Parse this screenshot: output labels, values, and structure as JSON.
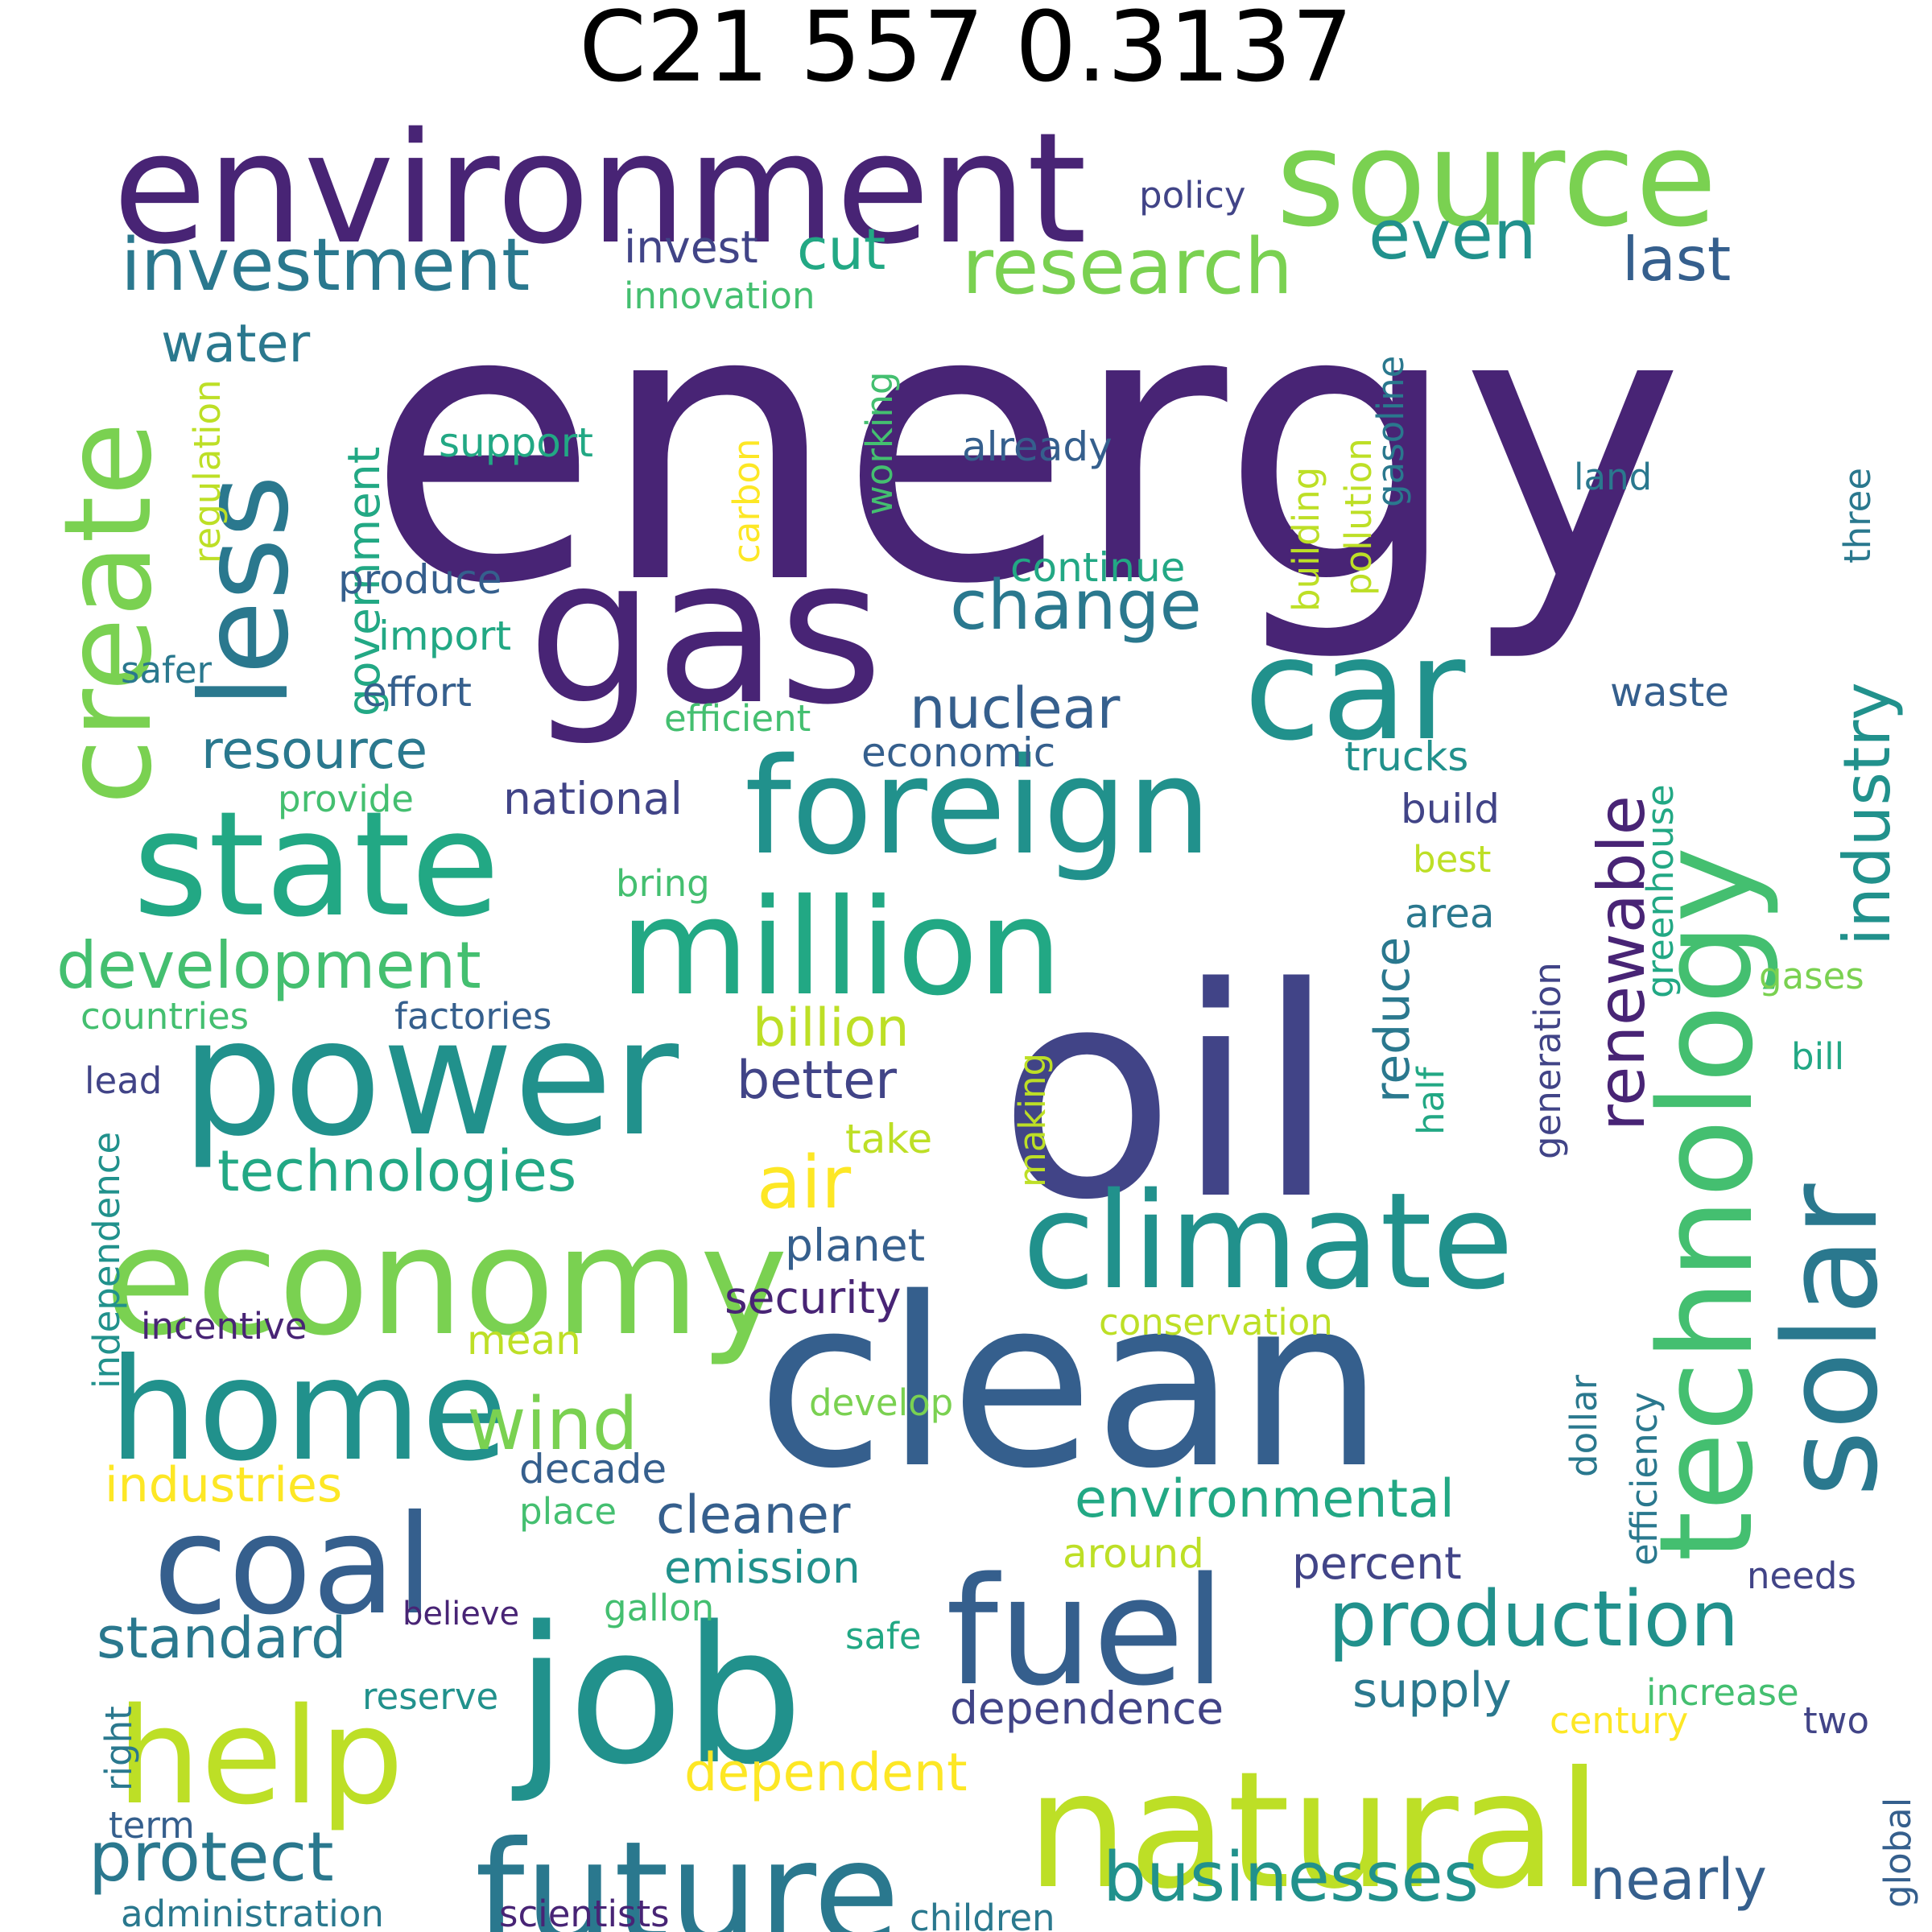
{
  "title": "C21 557 0.3137",
  "palette": {
    "v1": "#482475",
    "v2": "#414487",
    "v3": "#355f8d",
    "v4": "#2a788e",
    "v5": "#21918c",
    "v6": "#22a884",
    "v7": "#44bf70",
    "v8": "#7ad151",
    "v9": "#bddf26",
    "v10": "#fde725"
  },
  "words": [
    {
      "text": "energy",
      "color": "v1"
    },
    {
      "text": "environment",
      "color": "v1"
    },
    {
      "text": "source",
      "color": "v8"
    },
    {
      "text": "gas",
      "color": "v1"
    },
    {
      "text": "oil",
      "color": "v2"
    },
    {
      "text": "clean",
      "color": "v3"
    },
    {
      "text": "car",
      "color": "v5"
    },
    {
      "text": "foreign",
      "color": "v5"
    },
    {
      "text": "state",
      "color": "v6"
    },
    {
      "text": "million",
      "color": "v6"
    },
    {
      "text": "power",
      "color": "v5"
    },
    {
      "text": "economy",
      "color": "v8"
    },
    {
      "text": "climate",
      "color": "v5"
    },
    {
      "text": "technology",
      "color": "v7"
    },
    {
      "text": "solar",
      "color": "v4"
    },
    {
      "text": "home",
      "color": "v5"
    },
    {
      "text": "coal",
      "color": "v3"
    },
    {
      "text": "job",
      "color": "v5"
    },
    {
      "text": "fuel",
      "color": "v3"
    },
    {
      "text": "help",
      "color": "v9"
    },
    {
      "text": "natural",
      "color": "v9"
    },
    {
      "text": "future",
      "color": "v4"
    },
    {
      "text": "less",
      "color": "v4"
    },
    {
      "text": "create",
      "color": "v8"
    },
    {
      "text": "investment",
      "color": "v4"
    },
    {
      "text": "research",
      "color": "v8"
    },
    {
      "text": "even",
      "color": "v5"
    },
    {
      "text": "last",
      "color": "v3"
    },
    {
      "text": "invest",
      "color": "v2"
    },
    {
      "text": "cut",
      "color": "v6"
    },
    {
      "text": "innovation",
      "color": "v7"
    },
    {
      "text": "policy",
      "color": "v2"
    },
    {
      "text": "water",
      "color": "v4"
    },
    {
      "text": "government",
      "color": "v6"
    },
    {
      "text": "regulation",
      "color": "v9"
    },
    {
      "text": "support",
      "color": "v6"
    },
    {
      "text": "carbon",
      "color": "v10"
    },
    {
      "text": "working",
      "color": "v7"
    },
    {
      "text": "already",
      "color": "v3"
    },
    {
      "text": "building",
      "color": "v9"
    },
    {
      "text": "pollution",
      "color": "v9"
    },
    {
      "text": "gasoline",
      "color": "v4"
    },
    {
      "text": "land",
      "color": "v4"
    },
    {
      "text": "three",
      "color": "v4"
    },
    {
      "text": "produce",
      "color": "v3"
    },
    {
      "text": "change",
      "color": "v4"
    },
    {
      "text": "continue",
      "color": "v6"
    },
    {
      "text": "import",
      "color": "v6"
    },
    {
      "text": "safer",
      "color": "v4"
    },
    {
      "text": "effort",
      "color": "v3"
    },
    {
      "text": "efficient",
      "color": "v7"
    },
    {
      "text": "nuclear",
      "color": "v3"
    },
    {
      "text": "industry",
      "color": "v5"
    },
    {
      "text": "resource",
      "color": "v4"
    },
    {
      "text": "economic",
      "color": "v3"
    },
    {
      "text": "renewable",
      "color": "v1"
    },
    {
      "text": "waste",
      "color": "v3"
    },
    {
      "text": "trucks",
      "color": "v5"
    },
    {
      "text": "provide",
      "color": "v7"
    },
    {
      "text": "national",
      "color": "v2"
    },
    {
      "text": "build",
      "color": "v2"
    },
    {
      "text": "greenhouse",
      "color": "v6"
    },
    {
      "text": "best",
      "color": "v9"
    },
    {
      "text": "bring",
      "color": "v7"
    },
    {
      "text": "development",
      "color": "v7"
    },
    {
      "text": "area",
      "color": "v4"
    },
    {
      "text": "reduce",
      "color": "v4"
    },
    {
      "text": "gases",
      "color": "v8"
    },
    {
      "text": "billion",
      "color": "v9"
    },
    {
      "text": "countries",
      "color": "v7"
    },
    {
      "text": "factories",
      "color": "v3"
    },
    {
      "text": "generation",
      "color": "v2"
    },
    {
      "text": "bill",
      "color": "v6"
    },
    {
      "text": "half",
      "color": "v6"
    },
    {
      "text": "lead",
      "color": "v2"
    },
    {
      "text": "better",
      "color": "v2"
    },
    {
      "text": "making",
      "color": "v9"
    },
    {
      "text": "take",
      "color": "v9"
    },
    {
      "text": "air",
      "color": "v10"
    },
    {
      "text": "technologies",
      "color": "v6"
    },
    {
      "text": "independence",
      "color": "v5"
    },
    {
      "text": "planet",
      "color": "v3"
    },
    {
      "text": "security",
      "color": "v1"
    },
    {
      "text": "conservation",
      "color": "v9"
    },
    {
      "text": "incentive",
      "color": "v1"
    },
    {
      "text": "mean",
      "color": "v9"
    },
    {
      "text": "dollar",
      "color": "v4"
    },
    {
      "text": "efficiency",
      "color": "v4"
    },
    {
      "text": "develop",
      "color": "v8"
    },
    {
      "text": "wind",
      "color": "v8"
    },
    {
      "text": "industries",
      "color": "v10"
    },
    {
      "text": "decade",
      "color": "v3"
    },
    {
      "text": "place",
      "color": "v7"
    },
    {
      "text": "cleaner",
      "color": "v3"
    },
    {
      "text": "environmental",
      "color": "v6"
    },
    {
      "text": "around",
      "color": "v9"
    },
    {
      "text": "emission",
      "color": "v5"
    },
    {
      "text": "percent",
      "color": "v2"
    },
    {
      "text": "needs",
      "color": "v2"
    },
    {
      "text": "believe",
      "color": "v1"
    },
    {
      "text": "gallon",
      "color": "v7"
    },
    {
      "text": "safe",
      "color": "v6"
    },
    {
      "text": "standard",
      "color": "v4"
    },
    {
      "text": "production",
      "color": "v5"
    },
    {
      "text": "reserve",
      "color": "v5"
    },
    {
      "text": "supply",
      "color": "v4"
    },
    {
      "text": "increase",
      "color": "v7"
    },
    {
      "text": "dependence",
      "color": "v2"
    },
    {
      "text": "century",
      "color": "v10"
    },
    {
      "text": "two",
      "color": "v2"
    },
    {
      "text": "right",
      "color": "v4"
    },
    {
      "text": "dependent",
      "color": "v10"
    },
    {
      "text": "global",
      "color": "v3"
    },
    {
      "text": "term",
      "color": "v3"
    },
    {
      "text": "protect",
      "color": "v4"
    },
    {
      "text": "businesses",
      "color": "v5"
    },
    {
      "text": "nearly",
      "color": "v3"
    },
    {
      "text": "administration",
      "color": "v4"
    },
    {
      "text": "scientists",
      "color": "v1"
    },
    {
      "text": "children",
      "color": "v4"
    }
  ]
}
